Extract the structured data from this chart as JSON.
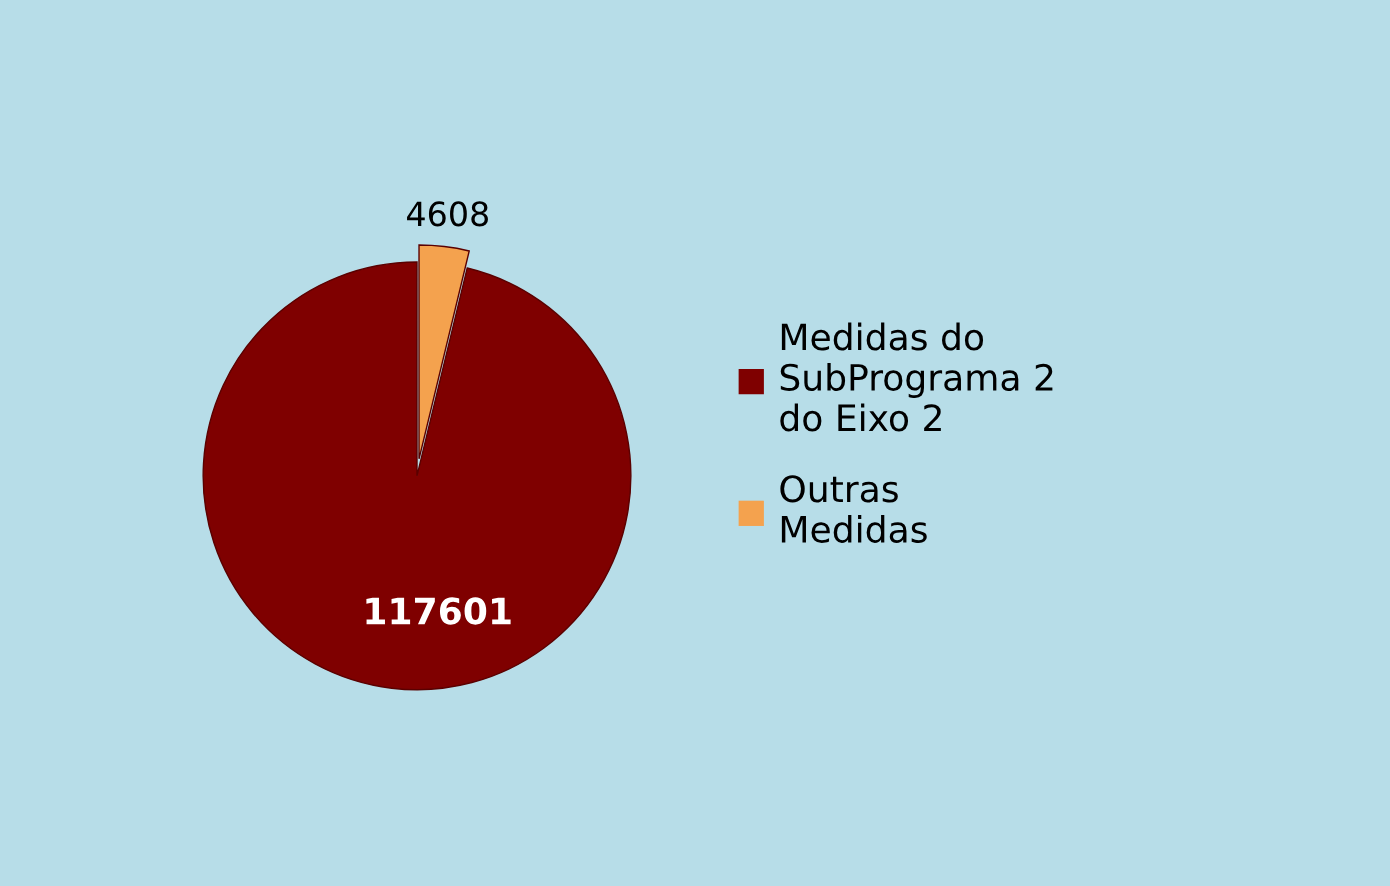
{
  "chart_data": {
    "type": "pie",
    "categories": [
      "Medidas do SubPrograma 2 do Eixo 2",
      "Outras Medidas"
    ],
    "values": [
      117601,
      4608
    ],
    "colors": [
      "#7f0000",
      "#f4a24e"
    ],
    "data_labels": true,
    "legend": "right"
  }
}
